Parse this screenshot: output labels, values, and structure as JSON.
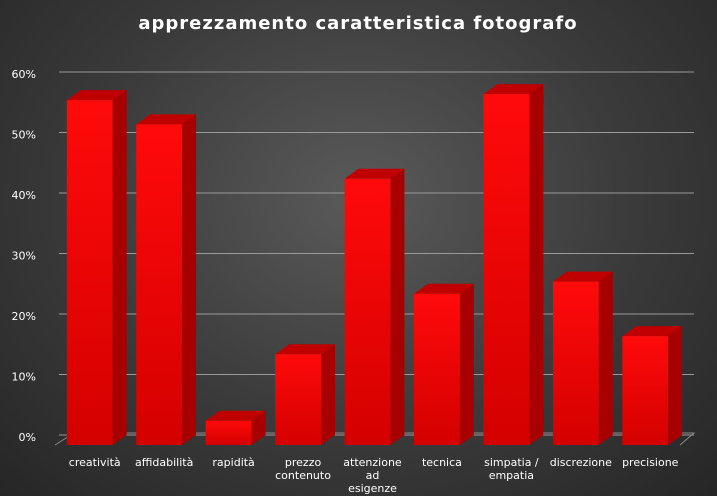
{
  "chart_data": {
    "type": "bar3d",
    "title": "apprezzamento caratteristica fotografo",
    "categories": [
      "creatività",
      "affidabilità",
      "rapidità",
      "prezzo contenuto",
      "attenzione ad esigenze",
      "tecnica",
      "simpatia / empatia",
      "discrezione",
      "precisione"
    ],
    "values": [
      57,
      53,
      4,
      15,
      44,
      25,
      58,
      27,
      18
    ],
    "color": "#e80000",
    "ylim": [
      0,
      60
    ],
    "yticks": [
      {
        "value": 0,
        "label": "0%"
      },
      {
        "value": 10,
        "label": "10%"
      },
      {
        "value": 20,
        "label": "20%"
      },
      {
        "value": 30,
        "label": "30%"
      },
      {
        "value": 40,
        "label": "40%"
      },
      {
        "value": 50,
        "label": "50%"
      },
      {
        "value": 60,
        "label": "60%"
      }
    ],
    "grid": true
  }
}
